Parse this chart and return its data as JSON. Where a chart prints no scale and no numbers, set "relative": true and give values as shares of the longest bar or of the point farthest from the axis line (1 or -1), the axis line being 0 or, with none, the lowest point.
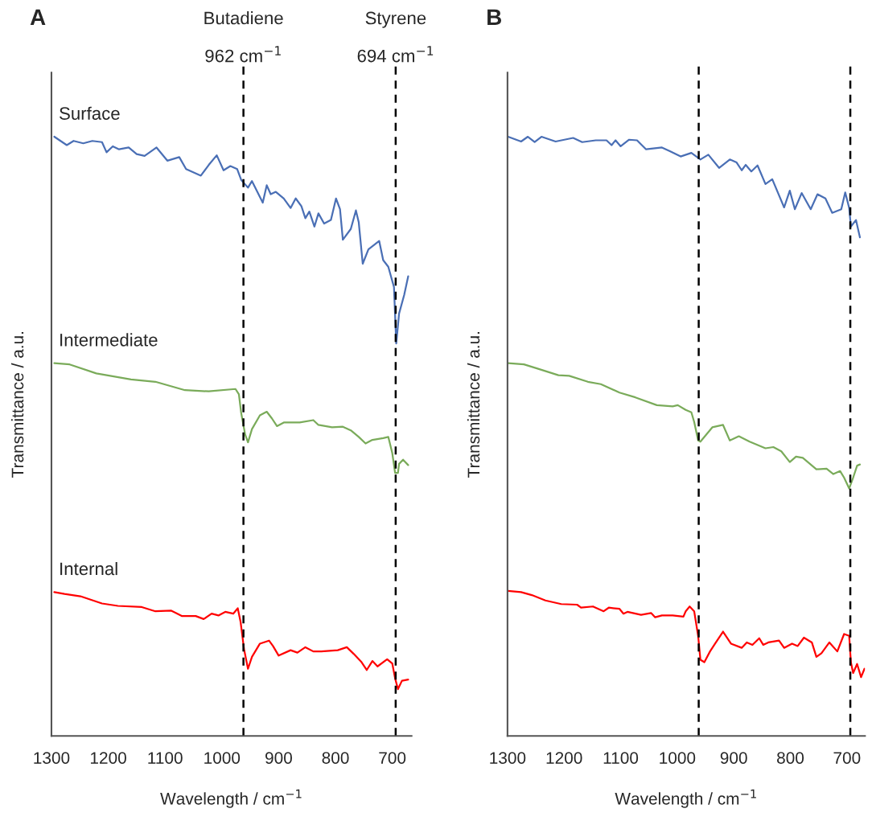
{
  "chart_data": [
    {
      "type": "line",
      "title": "A",
      "xlabel": "Wavelength / cm$^{−1}$",
      "ylabel": "Transmittance / a.u.",
      "relative": true,
      "tick_labels": "x",
      "line_style": "solid",
      "marker": "none",
      "xlim": [
        1300,
        666
      ],
      "xticks": [
        1300,
        1200,
        1100,
        1000,
        900,
        800,
        700
      ],
      "ref_lines": [
        {
          "axis": "x",
          "value": 962,
          "label": "Butadiene\n962 cm$^{−1}$",
          "color": "#000000",
          "line_style": "dashed"
        },
        {
          "axis": "x",
          "value": 694,
          "label": "Styrene\n694 cm$^{−1}$",
          "color": "#000000",
          "line_style": "dashed"
        }
      ],
      "series": [
        {
          "name": "Surface",
          "color": "#4a6fb5",
          "x": [
            1295,
            1273,
            1261,
            1244,
            1228,
            1211,
            1203,
            1192,
            1181,
            1164,
            1150,
            1136,
            1115,
            1096,
            1075,
            1063,
            1037,
            1023,
            1009,
            997,
            985,
            973,
            966,
            954,
            947,
            928,
            921,
            914,
            905,
            891,
            879,
            870,
            860,
            853,
            846,
            837,
            830,
            820,
            808,
            799,
            792,
            787,
            773,
            764,
            759,
            752,
            742,
            723,
            716,
            707,
            697,
            693,
            688,
            679,
            672
          ],
          "values": [
            1.0,
            0.986,
            0.993,
            0.989,
            0.993,
            0.991,
            0.974,
            0.984,
            0.979,
            0.982,
            0.971,
            0.968,
            0.982,
            0.96,
            0.966,
            0.946,
            0.935,
            0.953,
            0.969,
            0.944,
            0.951,
            0.946,
            0.928,
            0.915,
            0.926,
            0.89,
            0.919,
            0.904,
            0.908,
            0.897,
            0.881,
            0.897,
            0.884,
            0.864,
            0.875,
            0.85,
            0.872,
            0.855,
            0.861,
            0.897,
            0.879,
            0.828,
            0.846,
            0.877,
            0.857,
            0.788,
            0.812,
            0.826,
            0.794,
            0.783,
            0.749,
            0.655,
            0.705,
            0.736,
            0.767
          ]
        },
        {
          "name": "Intermediate",
          "color": "#7aab5a",
          "x": [
            1295,
            1268,
            1221,
            1160,
            1117,
            1065,
            1023,
            976,
            970,
            966,
            959,
            954,
            947,
            933,
            921,
            912,
            903,
            891,
            863,
            839,
            830,
            806,
            787,
            773,
            759,
            747,
            735,
            716,
            707,
            700,
            695,
            690,
            688,
            681,
            672
          ],
          "values": [
            0.622,
            0.62,
            0.605,
            0.595,
            0.591,
            0.577,
            0.575,
            0.579,
            0.57,
            0.539,
            0.503,
            0.49,
            0.512,
            0.535,
            0.541,
            0.53,
            0.517,
            0.523,
            0.523,
            0.527,
            0.519,
            0.515,
            0.516,
            0.51,
            0.499,
            0.488,
            0.494,
            0.497,
            0.499,
            0.472,
            0.439,
            0.439,
            0.454,
            0.461,
            0.452
          ]
        },
        {
          "name": "Internal",
          "color": "#ff0000",
          "x": [
            1295,
            1277,
            1249,
            1211,
            1183,
            1141,
            1117,
            1089,
            1070,
            1046,
            1032,
            1018,
            1006,
            994,
            980,
            972,
            967,
            961,
            954,
            947,
            933,
            917,
            910,
            900,
            879,
            867,
            853,
            839,
            825,
            796,
            780,
            768,
            754,
            745,
            735,
            726,
            709,
            700,
            695,
            690,
            683,
            672
          ],
          "values": [
            0.24,
            0.237,
            0.233,
            0.221,
            0.217,
            0.215,
            0.208,
            0.209,
            0.2,
            0.2,
            0.195,
            0.204,
            0.201,
            0.207,
            0.204,
            0.213,
            0.19,
            0.145,
            0.112,
            0.132,
            0.154,
            0.159,
            0.15,
            0.134,
            0.143,
            0.139,
            0.148,
            0.141,
            0.141,
            0.143,
            0.148,
            0.137,
            0.123,
            0.11,
            0.125,
            0.116,
            0.128,
            0.121,
            0.096,
            0.078,
            0.092,
            0.094
          ]
        }
      ]
    },
    {
      "type": "line",
      "title": "B",
      "xlabel": "Wavelength / cm$^{−1}$",
      "ylabel": "Transmittance / a.u.",
      "relative": true,
      "tick_labels": "x",
      "line_style": "solid",
      "marker": "none",
      "xlim": [
        1300,
        668
      ],
      "xticks": [
        1300,
        1200,
        1100,
        1000,
        900,
        800,
        700
      ],
      "ref_lines": [
        {
          "axis": "x",
          "value": 962,
          "color": "#000000",
          "line_style": "dashed"
        },
        {
          "axis": "x",
          "value": 694,
          "color": "#000000",
          "line_style": "dashed"
        }
      ],
      "series": [
        {
          "color": "#4a6fb5",
          "x": [
            1299,
            1276,
            1264,
            1252,
            1240,
            1215,
            1184,
            1168,
            1144,
            1125,
            1116,
            1109,
            1100,
            1085,
            1071,
            1055,
            1027,
            1013,
            994,
            975,
            959,
            945,
            926,
            907,
            895,
            886,
            879,
            869,
            858,
            844,
            832,
            811,
            801,
            792,
            780,
            764,
            752,
            738,
            726,
            710,
            703,
            696,
            693,
            684,
            677
          ],
          "values": [
            1.0,
            0.992,
            1.0,
            0.991,
            1.0,
            0.992,
            0.998,
            0.991,
            0.994,
            0.994,
            0.986,
            0.994,
            0.984,
            0.995,
            0.994,
            0.979,
            0.982,
            0.976,
            0.967,
            0.973,
            0.962,
            0.97,
            0.948,
            0.962,
            0.957,
            0.944,
            0.953,
            0.942,
            0.952,
            0.921,
            0.929,
            0.882,
            0.91,
            0.879,
            0.906,
            0.879,
            0.904,
            0.897,
            0.873,
            0.879,
            0.907,
            0.881,
            0.85,
            0.861,
            0.832
          ]
        },
        {
          "color": "#7aab5a",
          "x": [
            1299,
            1271,
            1247,
            1210,
            1191,
            1158,
            1135,
            1102,
            1074,
            1036,
            1008,
            999,
            985,
            975,
            970,
            963,
            959,
            938,
            919,
            907,
            891,
            872,
            844,
            830,
            816,
            801,
            790,
            778,
            754,
            736,
            724,
            712,
            705,
            696,
            689,
            682,
            677
          ],
          "values": [
            0.622,
            0.62,
            0.613,
            0.602,
            0.601,
            0.591,
            0.587,
            0.573,
            0.565,
            0.552,
            0.55,
            0.552,
            0.544,
            0.54,
            0.524,
            0.493,
            0.491,
            0.515,
            0.519,
            0.493,
            0.5,
            0.491,
            0.48,
            0.482,
            0.475,
            0.457,
            0.466,
            0.464,
            0.445,
            0.446,
            0.437,
            0.442,
            0.431,
            0.413,
            0.431,
            0.451,
            0.453
          ]
        },
        {
          "color": "#ff0000",
          "x": [
            1299,
            1276,
            1257,
            1233,
            1205,
            1177,
            1170,
            1149,
            1130,
            1121,
            1102,
            1095,
            1088,
            1064,
            1046,
            1039,
            1027,
            1008,
            989,
            985,
            978,
            970,
            963,
            959,
            952,
            942,
            933,
            919,
            905,
            886,
            877,
            867,
            855,
            848,
            839,
            820,
            811,
            797,
            787,
            776,
            762,
            754,
            745,
            731,
            717,
            705,
            696,
            693,
            689,
            682,
            675,
            669
          ],
          "values": [
            0.242,
            0.24,
            0.235,
            0.226,
            0.22,
            0.219,
            0.214,
            0.216,
            0.208,
            0.214,
            0.212,
            0.204,
            0.207,
            0.202,
            0.205,
            0.198,
            0.201,
            0.201,
            0.199,
            0.208,
            0.216,
            0.208,
            0.167,
            0.127,
            0.123,
            0.141,
            0.154,
            0.174,
            0.154,
            0.147,
            0.156,
            0.152,
            0.163,
            0.152,
            0.156,
            0.159,
            0.147,
            0.154,
            0.15,
            0.164,
            0.156,
            0.132,
            0.138,
            0.156,
            0.141,
            0.17,
            0.167,
            0.123,
            0.105,
            0.12,
            0.098,
            0.112
          ]
        }
      ]
    }
  ]
}
